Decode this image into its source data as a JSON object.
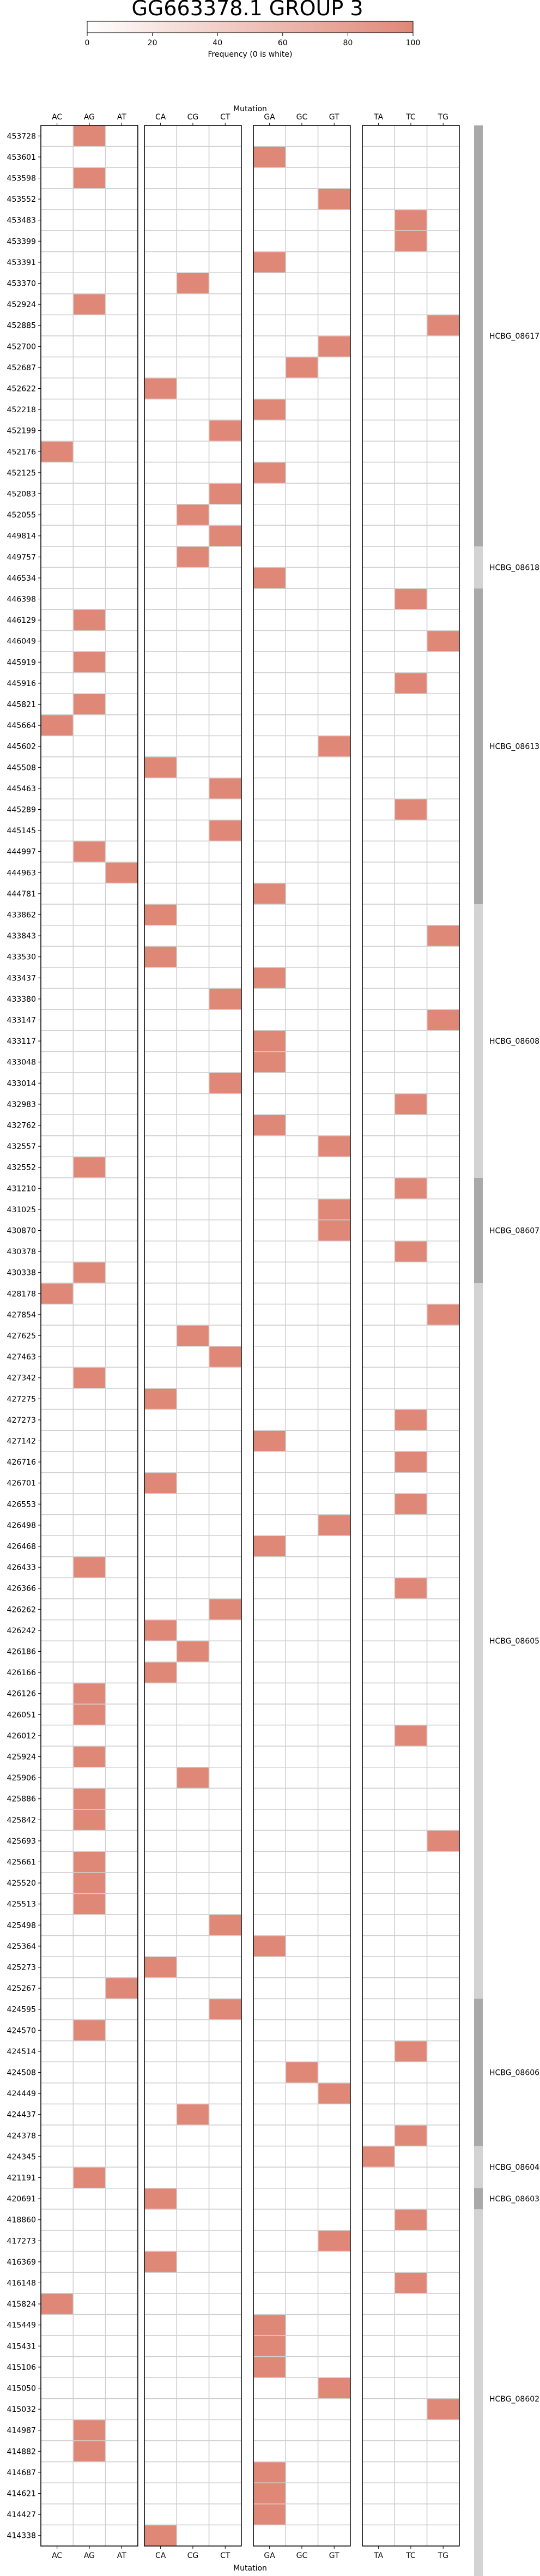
{
  "chart_data": {
    "type": "heatmap",
    "title": "GG663378.1 GROUP 3",
    "xlabel": "Mutation",
    "colorbar": {
      "label": "Frequency (0 is white)",
      "ticks": [
        0,
        20,
        40,
        60,
        80,
        100
      ],
      "range": [
        0,
        100
      ],
      "color_low": "#ffffff",
      "color_high": "#e08878"
    },
    "cell_color": "#e08878",
    "groups": [
      {
        "name": "A",
        "columns": [
          "AC",
          "AG",
          "AT"
        ]
      },
      {
        "name": "C",
        "columns": [
          "CA",
          "CG",
          "CT"
        ]
      },
      {
        "name": "G",
        "columns": [
          "GA",
          "GC",
          "GT"
        ]
      },
      {
        "name": "T",
        "columns": [
          "TA",
          "TC",
          "TG"
        ]
      }
    ],
    "rows": [
      {
        "pos": "453728",
        "mut": "AG"
      },
      {
        "pos": "453601",
        "mut": "GA"
      },
      {
        "pos": "453598",
        "mut": "AG"
      },
      {
        "pos": "453552",
        "mut": "GT"
      },
      {
        "pos": "453483",
        "mut": "TC"
      },
      {
        "pos": "453399",
        "mut": "TC"
      },
      {
        "pos": "453391",
        "mut": "GA"
      },
      {
        "pos": "453370",
        "mut": "CG"
      },
      {
        "pos": "452924",
        "mut": "AG"
      },
      {
        "pos": "452885",
        "mut": "TG"
      },
      {
        "pos": "452700",
        "mut": "GT"
      },
      {
        "pos": "452687",
        "mut": "GC"
      },
      {
        "pos": "452622",
        "mut": "CA"
      },
      {
        "pos": "452218",
        "mut": "GA"
      },
      {
        "pos": "452199",
        "mut": "CT"
      },
      {
        "pos": "452176",
        "mut": "AC"
      },
      {
        "pos": "452125",
        "mut": "GA"
      },
      {
        "pos": "452083",
        "mut": "CT"
      },
      {
        "pos": "452055",
        "mut": "CG"
      },
      {
        "pos": "449814",
        "mut": "CT"
      },
      {
        "pos": "449757",
        "mut": "CG"
      },
      {
        "pos": "446534",
        "mut": "GA"
      },
      {
        "pos": "446398",
        "mut": "TC"
      },
      {
        "pos": "446129",
        "mut": "AG"
      },
      {
        "pos": "446049",
        "mut": "TG"
      },
      {
        "pos": "445919",
        "mut": "AG"
      },
      {
        "pos": "445916",
        "mut": "TC"
      },
      {
        "pos": "445821",
        "mut": "AG"
      },
      {
        "pos": "445664",
        "mut": "AC"
      },
      {
        "pos": "445602",
        "mut": "GT"
      },
      {
        "pos": "445508",
        "mut": "CA"
      },
      {
        "pos": "445463",
        "mut": "CT"
      },
      {
        "pos": "445289",
        "mut": "TC"
      },
      {
        "pos": "445145",
        "mut": "CT"
      },
      {
        "pos": "444997",
        "mut": "AG"
      },
      {
        "pos": "444963",
        "mut": "AT"
      },
      {
        "pos": "444781",
        "mut": "GA"
      },
      {
        "pos": "433862",
        "mut": "CA"
      },
      {
        "pos": "433843",
        "mut": "TG"
      },
      {
        "pos": "433530",
        "mut": "CA"
      },
      {
        "pos": "433437",
        "mut": "GA"
      },
      {
        "pos": "433380",
        "mut": "CT"
      },
      {
        "pos": "433147",
        "mut": "TG"
      },
      {
        "pos": "433117",
        "mut": "GA"
      },
      {
        "pos": "433048",
        "mut": "GA"
      },
      {
        "pos": "433014",
        "mut": "CT"
      },
      {
        "pos": "432983",
        "mut": "TC"
      },
      {
        "pos": "432762",
        "mut": "GA"
      },
      {
        "pos": "432557",
        "mut": "GT"
      },
      {
        "pos": "432552",
        "mut": "AG"
      },
      {
        "pos": "431210",
        "mut": "TC"
      },
      {
        "pos": "431025",
        "mut": "GT"
      },
      {
        "pos": "430870",
        "mut": "GT"
      },
      {
        "pos": "430378",
        "mut": "TC"
      },
      {
        "pos": "430338",
        "mut": "AG"
      },
      {
        "pos": "428178",
        "mut": "AC"
      },
      {
        "pos": "427854",
        "mut": "TG"
      },
      {
        "pos": "427625",
        "mut": "CG"
      },
      {
        "pos": "427463",
        "mut": "CT"
      },
      {
        "pos": "427342",
        "mut": "AG"
      },
      {
        "pos": "427275",
        "mut": "CA"
      },
      {
        "pos": "427273",
        "mut": "TC"
      },
      {
        "pos": "427142",
        "mut": "GA"
      },
      {
        "pos": "426716",
        "mut": "TC"
      },
      {
        "pos": "426701",
        "mut": "CA"
      },
      {
        "pos": "426553",
        "mut": "TC"
      },
      {
        "pos": "426498",
        "mut": "GT"
      },
      {
        "pos": "426468",
        "mut": "GA"
      },
      {
        "pos": "426433",
        "mut": "AG"
      },
      {
        "pos": "426366",
        "mut": "TC"
      },
      {
        "pos": "426262",
        "mut": "CT"
      },
      {
        "pos": "426242",
        "mut": "CA"
      },
      {
        "pos": "426186",
        "mut": "CG"
      },
      {
        "pos": "426166",
        "mut": "CA"
      },
      {
        "pos": "426126",
        "mut": "AG"
      },
      {
        "pos": "426051",
        "mut": "AG"
      },
      {
        "pos": "426012",
        "mut": "TC"
      },
      {
        "pos": "425924",
        "mut": "AG"
      },
      {
        "pos": "425906",
        "mut": "CG"
      },
      {
        "pos": "425886",
        "mut": "AG"
      },
      {
        "pos": "425842",
        "mut": "AG"
      },
      {
        "pos": "425693",
        "mut": "TG"
      },
      {
        "pos": "425661",
        "mut": "AG"
      },
      {
        "pos": "425520",
        "mut": "AG"
      },
      {
        "pos": "425513",
        "mut": "AG"
      },
      {
        "pos": "425498",
        "mut": "CT"
      },
      {
        "pos": "425364",
        "mut": "GA"
      },
      {
        "pos": "425273",
        "mut": "CA"
      },
      {
        "pos": "425267",
        "mut": "AT"
      },
      {
        "pos": "424595",
        "mut": "CT"
      },
      {
        "pos": "424570",
        "mut": "AG"
      },
      {
        "pos": "424514",
        "mut": "TC"
      },
      {
        "pos": "424508",
        "mut": "GC"
      },
      {
        "pos": "424449",
        "mut": "GT"
      },
      {
        "pos": "424437",
        "mut": "CG"
      },
      {
        "pos": "424378",
        "mut": "TC"
      },
      {
        "pos": "424345",
        "mut": "TA"
      },
      {
        "pos": "421191",
        "mut": "AG"
      },
      {
        "pos": "420691",
        "mut": "CA"
      },
      {
        "pos": "418860",
        "mut": "TC"
      },
      {
        "pos": "417273",
        "mut": "GT"
      },
      {
        "pos": "416369",
        "mut": "CA"
      },
      {
        "pos": "416148",
        "mut": "TC"
      },
      {
        "pos": "415824",
        "mut": "AC"
      },
      {
        "pos": "415449",
        "mut": "GA"
      },
      {
        "pos": "415431",
        "mut": "GA"
      },
      {
        "pos": "415106",
        "mut": "GA"
      },
      {
        "pos": "415050",
        "mut": "GT"
      },
      {
        "pos": "415032",
        "mut": "TG"
      },
      {
        "pos": "414987",
        "mut": "AG"
      },
      {
        "pos": "414882",
        "mut": "AG"
      },
      {
        "pos": "414687",
        "mut": "GA"
      },
      {
        "pos": "414621",
        "mut": "GA"
      },
      {
        "pos": "414427",
        "mut": "GA"
      },
      {
        "pos": "414338",
        "mut": "CA"
      }
    ],
    "genes": [
      {
        "name": "HCBG_08617",
        "start": 0,
        "end": 20,
        "shade": "#a9a9a9"
      },
      {
        "name": "HCBG_08618",
        "start": 20,
        "end": 22,
        "shade": "#d3d3d3"
      },
      {
        "name": "HCBG_08613",
        "start": 22,
        "end": 37,
        "shade": "#a9a9a9"
      },
      {
        "name": "HCBG_08608",
        "start": 37,
        "end": 50,
        "shade": "#d3d3d3"
      },
      {
        "name": "HCBG_08607",
        "start": 50,
        "end": 55,
        "shade": "#a9a9a9"
      },
      {
        "name": "HCBG_08605",
        "start": 55,
        "end": 89,
        "shade": "#d3d3d3"
      },
      {
        "name": "HCBG_08606",
        "start": 89,
        "end": 96,
        "shade": "#a9a9a9"
      },
      {
        "name": "HCBG_08604",
        "start": 96,
        "end": 98,
        "shade": "#d3d3d3"
      },
      {
        "name": "HCBG_08603",
        "start": 98,
        "end": 99,
        "shade": "#a9a9a9"
      },
      {
        "name": "HCBG_08602",
        "start": 99,
        "end": 117,
        "shade": "#d3d3d3"
      }
    ]
  }
}
